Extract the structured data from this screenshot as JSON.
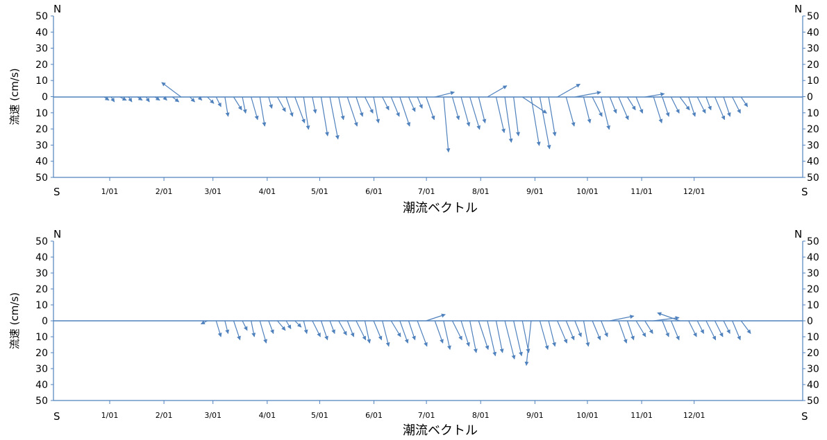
{
  "chart_data": [
    {
      "type": "vector",
      "xlabel": "潮流ベクトル",
      "ylabel": "流速 (cm/s)",
      "north_label": "N",
      "south_label": "S",
      "ylim": [
        -50,
        50
      ],
      "y_ticks": [
        "50",
        "40",
        "30",
        "20",
        "10",
        "0",
        "10",
        "20",
        "30",
        "40",
        "50"
      ],
      "x_ticks": [
        "1/01",
        "2/01",
        "3/01",
        "4/01",
        "5/01",
        "6/01",
        "7/01",
        "8/01",
        "9/01",
        "10/01",
        "11/01",
        "12/01"
      ],
      "color": "#4f81bd",
      "series_note": "daily tidal current vectors; x = day of year, u/v = east/north components in cm/s",
      "vectors": {
        "day": [
          1,
          5,
          10,
          15,
          20,
          25,
          30,
          35,
          40,
          45,
          50,
          55,
          60,
          65,
          70,
          75,
          80,
          85,
          90,
          95,
          100,
          105,
          110,
          115,
          120,
          125,
          130,
          135,
          140,
          145,
          150,
          155,
          160,
          165,
          170,
          175,
          180,
          185,
          190,
          195,
          200,
          205,
          210,
          215,
          220,
          225,
          230,
          235,
          240,
          245,
          250,
          255,
          260,
          265,
          270,
          275,
          280,
          285,
          290,
          295,
          300,
          305,
          310,
          315,
          320,
          325,
          330,
          335,
          340,
          345,
          350,
          355,
          360,
          365
        ],
        "u": [
          3,
          2,
          4,
          2,
          3,
          2,
          3,
          2,
          4,
          -12,
          3,
          2,
          4,
          3,
          2,
          5,
          2,
          4,
          3,
          2,
          5,
          4,
          6,
          3,
          2,
          4,
          5,
          3,
          6,
          4,
          5,
          3,
          4,
          5,
          6,
          4,
          3,
          5,
          12,
          3,
          4,
          5,
          6,
          4,
          12,
          5,
          4,
          3,
          15,
          5,
          6,
          4,
          14,
          5,
          16,
          4,
          6,
          5,
          4,
          6,
          5,
          4,
          12,
          5,
          4,
          5,
          6,
          4,
          5,
          3,
          6,
          4,
          5,
          4
        ],
        "v": [
          -2,
          -3,
          -2,
          -3,
          -2,
          -3,
          -2,
          -2,
          -3,
          9,
          -3,
          -2,
          -4,
          -6,
          -12,
          -8,
          -10,
          -14,
          -18,
          -7,
          -9,
          -12,
          -16,
          -20,
          -10,
          -24,
          -26,
          -14,
          -18,
          -12,
          -10,
          -16,
          -8,
          -12,
          -18,
          -9,
          -7,
          -14,
          3,
          -34,
          -14,
          -18,
          -20,
          -16,
          7,
          -22,
          -28,
          -24,
          -10,
          -30,
          -32,
          -24,
          8,
          -18,
          3,
          -16,
          -12,
          -20,
          -10,
          -14,
          -8,
          -10,
          2,
          -16,
          -12,
          -10,
          -8,
          -12,
          -10,
          -8,
          -14,
          -12,
          -10,
          -6
        ]
      }
    },
    {
      "type": "vector",
      "xlabel": "潮流ベクトル",
      "ylabel": "流速 (cm/s)",
      "north_label": "N",
      "south_label": "S",
      "ylim": [
        -50,
        50
      ],
      "y_ticks": [
        "50",
        "40",
        "30",
        "20",
        "10",
        "0",
        "10",
        "20",
        "30",
        "40",
        "50"
      ],
      "x_ticks": [
        "1/01",
        "2/01",
        "3/01",
        "4/01",
        "5/01",
        "6/01",
        "7/01",
        "8/01",
        "9/01",
        "10/01",
        "11/01",
        "12/01"
      ],
      "color": "#4f81bd",
      "vectors": {
        "day": [
          60,
          65,
          70,
          75,
          80,
          85,
          90,
          95,
          100,
          105,
          110,
          115,
          120,
          125,
          130,
          135,
          140,
          145,
          150,
          155,
          160,
          165,
          170,
          175,
          180,
          185,
          190,
          195,
          200,
          205,
          210,
          215,
          220,
          225,
          230,
          235,
          240,
          245,
          250,
          255,
          260,
          265,
          270,
          275,
          280,
          285,
          290,
          295,
          300,
          305,
          310,
          315,
          320,
          325,
          330,
          335,
          340,
          345,
          350,
          355,
          360,
          365
        ],
        "u": [
          -4,
          3,
          2,
          4,
          3,
          2,
          4,
          3,
          5,
          3,
          4,
          2,
          5,
          4,
          3,
          5,
          4,
          6,
          3,
          5,
          4,
          6,
          5,
          4,
          6,
          12,
          5,
          4,
          6,
          5,
          4,
          6,
          5,
          4,
          6,
          5,
          4,
          -3,
          5,
          4,
          6,
          5,
          4,
          3,
          5,
          4,
          15,
          5,
          4,
          6,
          5,
          16,
          4,
          5,
          -14,
          5,
          4,
          6,
          5,
          4,
          5,
          6
        ],
        "v": [
          -2,
          -10,
          -8,
          -12,
          -6,
          -10,
          -14,
          -8,
          -6,
          -5,
          -4,
          -8,
          -10,
          -12,
          -8,
          -9,
          -10,
          -12,
          -14,
          -12,
          -16,
          -10,
          -14,
          -12,
          -16,
          4,
          -14,
          -18,
          -12,
          -16,
          -20,
          -18,
          -22,
          -20,
          -24,
          -22,
          -20,
          -28,
          -18,
          -16,
          -14,
          -12,
          -10,
          -16,
          -12,
          -10,
          3,
          -14,
          -12,
          -10,
          -8,
          2,
          -10,
          -12,
          5,
          -10,
          -8,
          -12,
          -10,
          -8,
          -12,
          -8
        ]
      }
    }
  ]
}
